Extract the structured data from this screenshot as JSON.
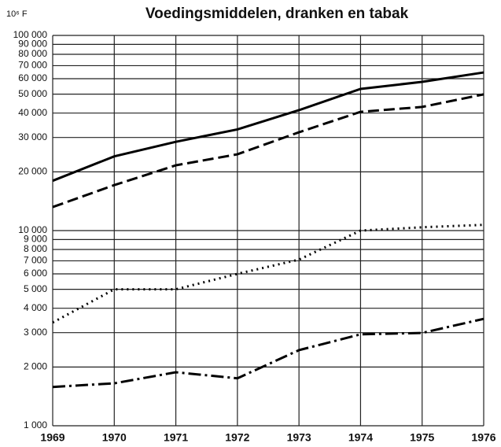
{
  "chart_data": {
    "type": "line",
    "title": "Voedingsmiddelen, dranken en tabak",
    "y_label": "10⁶ F",
    "x": [
      1969,
      1970,
      1971,
      1972,
      1973,
      1974,
      1975,
      1976
    ],
    "series": [
      {
        "color": "#000000",
        "style": "solid",
        "values": [
          18000,
          24000,
          28500,
          33000,
          41400,
          53200,
          57800,
          64600
        ]
      },
      {
        "color": "#000000",
        "style": "dashed",
        "values": [
          13200,
          17100,
          21600,
          24600,
          31900,
          40600,
          43000,
          49900
        ]
      },
      {
        "color": "#000000",
        "style": "dotted",
        "values": [
          3380,
          5000,
          5000,
          6000,
          7100,
          10000,
          10400,
          10700
        ]
      },
      {
        "color": "#000000",
        "style": "dashdot",
        "values": [
          1580,
          1650,
          1880,
          1750,
          2440,
          2940,
          2990,
          3530
        ]
      }
    ],
    "xlim": [
      1969,
      1976
    ],
    "xticks": [
      1969,
      1970,
      1971,
      1972,
      1973,
      1974,
      1975,
      1976
    ],
    "ylim": [
      1000,
      100000
    ],
    "log_y": true,
    "grid": true,
    "yticks": [
      {
        "value": 1000,
        "label": "1 000"
      },
      {
        "value": 2000,
        "label": "2 000"
      },
      {
        "value": 3000,
        "label": "3 000"
      },
      {
        "value": 4000,
        "label": "4 000"
      },
      {
        "value": 5000,
        "label": "5 000"
      },
      {
        "value": 6000,
        "label": "6 000"
      },
      {
        "value": 7000,
        "label": "7 000"
      },
      {
        "value": 8000,
        "label": "8 000"
      },
      {
        "value": 9000,
        "label": "9 000"
      },
      {
        "value": 10000,
        "label": "10 000"
      },
      {
        "value": 20000,
        "label": "20 000"
      },
      {
        "value": 30000,
        "label": "30 000"
      },
      {
        "value": 40000,
        "label": "40 000"
      },
      {
        "value": 50000,
        "label": "50 000"
      },
      {
        "value": 60000,
        "label": "60 000"
      },
      {
        "value": 70000,
        "label": "70 000"
      },
      {
        "value": 80000,
        "label": "80 000"
      },
      {
        "value": 90000,
        "label": "90 000"
      },
      {
        "value": 100000,
        "label": "100 000"
      }
    ]
  }
}
